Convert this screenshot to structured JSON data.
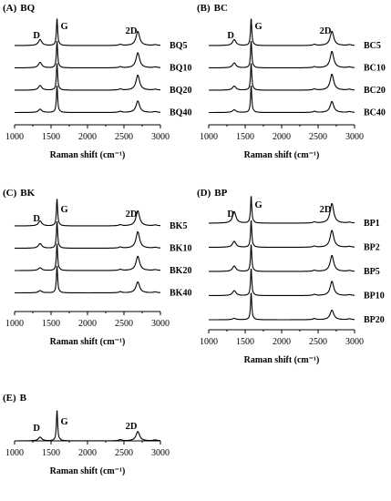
{
  "chart_data": [
    {
      "type": "line",
      "panel": "(A)",
      "title": "BQ",
      "xlabel": "Raman shift (cm⁻¹)",
      "xlim": [
        1000,
        3000
      ],
      "xticks": [
        1000,
        1500,
        2000,
        2500,
        3000
      ],
      "peak_labels": [
        "D",
        "G",
        "2D"
      ],
      "series": [
        {
          "name": "BQ5",
          "d": 0.22,
          "g": 1.0,
          "t": 0.52
        },
        {
          "name": "BQ10",
          "d": 0.2,
          "g": 1.0,
          "t": 0.55
        },
        {
          "name": "BQ20",
          "d": 0.17,
          "g": 1.0,
          "t": 0.55
        },
        {
          "name": "BQ40",
          "d": 0.12,
          "g": 1.0,
          "t": 0.42
        }
      ]
    },
    {
      "type": "line",
      "panel": "(B)",
      "title": "BC",
      "xlabel": "Raman shift (cm⁻¹)",
      "xlim": [
        1000,
        3000
      ],
      "xticks": [
        1000,
        1500,
        2000,
        2500,
        3000
      ],
      "peak_labels": [
        "D",
        "G",
        "2D"
      ],
      "series": [
        {
          "name": "BC5",
          "d": 0.22,
          "g": 1.0,
          "t": 0.52
        },
        {
          "name": "BC10",
          "d": 0.18,
          "g": 1.0,
          "t": 0.6
        },
        {
          "name": "BC20",
          "d": 0.15,
          "g": 1.0,
          "t": 0.58
        },
        {
          "name": "BC40",
          "d": 0.1,
          "g": 1.0,
          "t": 0.4
        }
      ]
    },
    {
      "type": "line",
      "panel": "(C)",
      "title": "BK",
      "xlabel": "Raman shift (cm⁻¹)",
      "xlim": [
        1000,
        3000
      ],
      "xticks": [
        1000,
        1500,
        2000,
        2500,
        3000
      ],
      "peak_labels": [
        "D",
        "G",
        "2D"
      ],
      "series": [
        {
          "name": "BK5",
          "d": 0.18,
          "g": 1.0,
          "t": 0.55
        },
        {
          "name": "BK10",
          "d": 0.17,
          "g": 1.0,
          "t": 0.6
        },
        {
          "name": "BK20",
          "d": 0.1,
          "g": 1.0,
          "t": 0.52
        },
        {
          "name": "BK40",
          "d": 0.08,
          "g": 1.0,
          "t": 0.4
        }
      ]
    },
    {
      "type": "line",
      "panel": "(D)",
      "title": "BP",
      "xlabel": "Raman shift (cm⁻¹)",
      "xlim": [
        1000,
        3000
      ],
      "xticks": [
        1000,
        1500,
        2000,
        2500,
        3000
      ],
      "peak_labels": [
        "D",
        "G",
        "2D"
      ],
      "series": [
        {
          "name": "BP1",
          "d": 0.42,
          "g": 1.0,
          "t": 0.72
        },
        {
          "name": "BP2",
          "d": 0.22,
          "g": 1.0,
          "t": 0.62
        },
        {
          "name": "BP5",
          "d": 0.2,
          "g": 1.0,
          "t": 0.58
        },
        {
          "name": "BP10",
          "d": 0.18,
          "g": 1.0,
          "t": 0.52
        },
        {
          "name": "BP20",
          "d": 0.05,
          "g": 1.0,
          "t": 0.35
        }
      ]
    },
    {
      "type": "line",
      "panel": "(E)",
      "title": "B",
      "xlabel": "Raman shift (cm⁻¹)",
      "xlim": [
        1000,
        3000
      ],
      "xticks": [
        1000,
        1500,
        2000,
        2500,
        3000
      ],
      "peak_labels": [
        "D",
        "G",
        "2D"
      ],
      "series": [
        {
          "name": "",
          "d": 0.12,
          "g": 1.0,
          "t": 0.3
        }
      ]
    }
  ]
}
